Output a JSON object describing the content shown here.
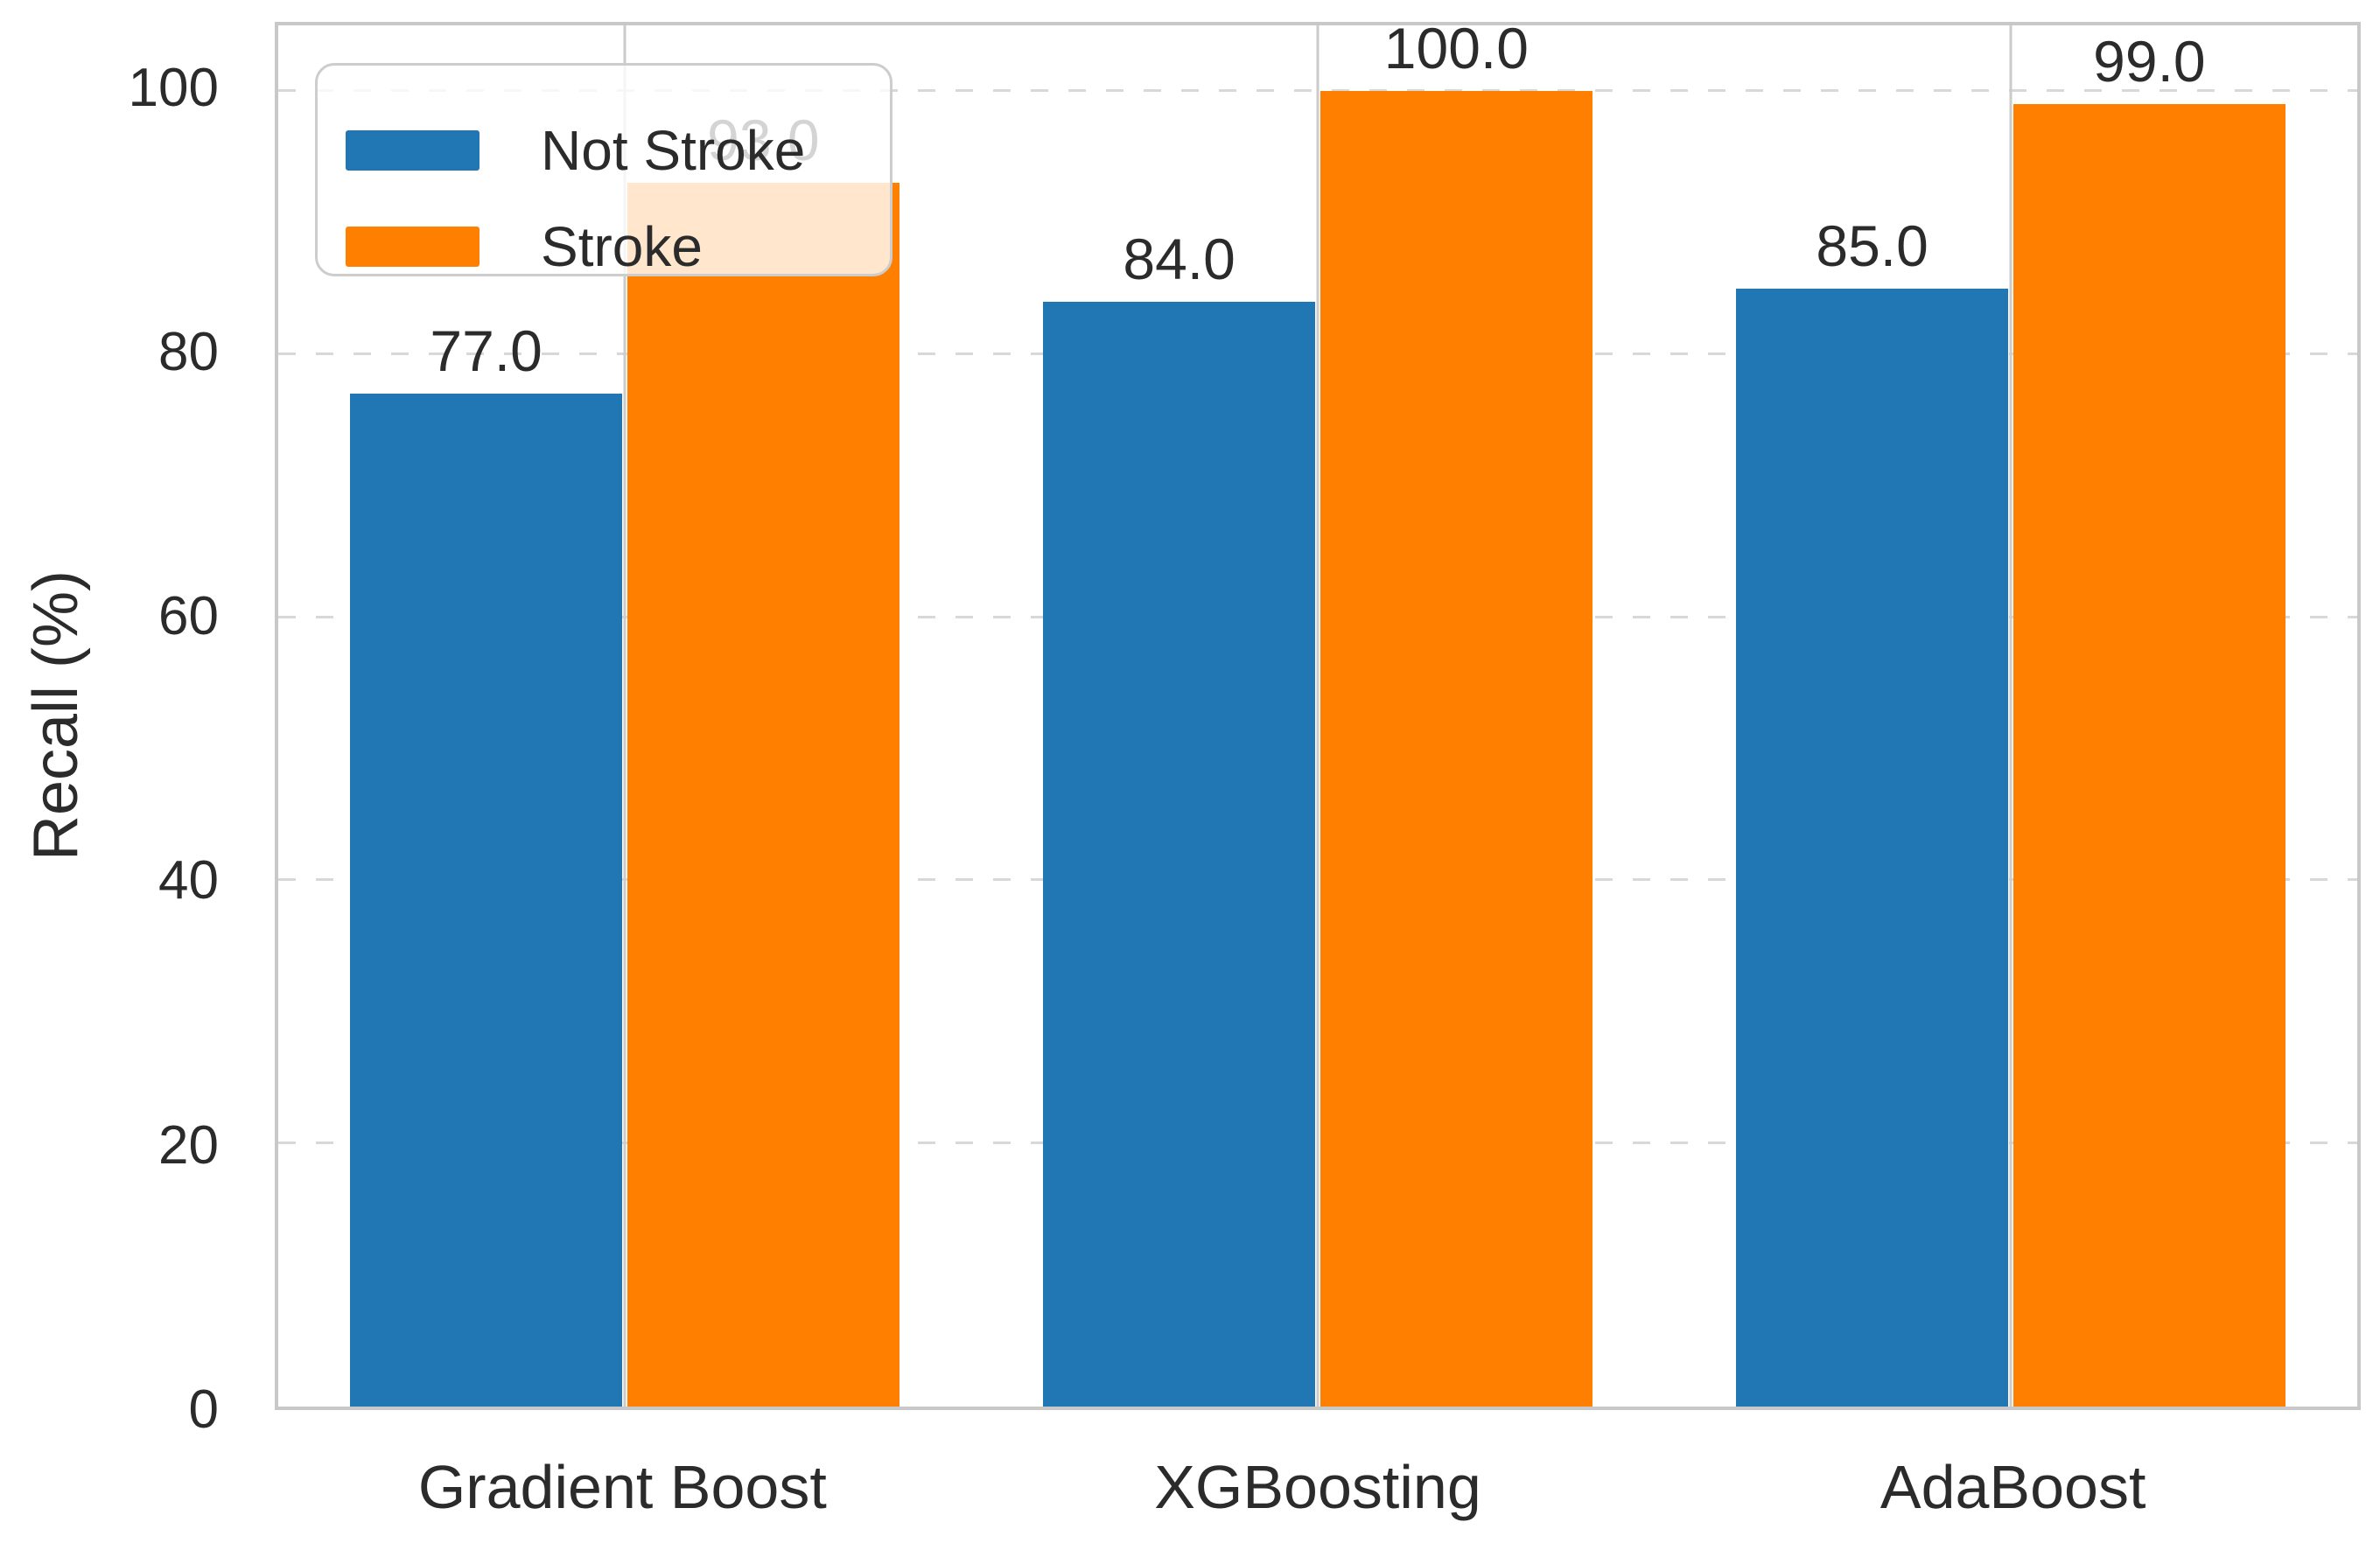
{
  "figure": {
    "background_color": "#ffffff",
    "spine_color": "#c8c8c8",
    "hgrid_color": "#d8d8d8",
    "vgrid_color": "#cbcbcb",
    "text_color": "#2b2b2b"
  },
  "chart_data": {
    "type": "bar",
    "title": "",
    "xlabel": "",
    "ylabel": "Recall (%)",
    "categories": [
      "Gradient Boost",
      "XGBoosting",
      "AdaBoost"
    ],
    "series": [
      {
        "name": "Not Stroke",
        "color": "#2077b4",
        "values": [
          77.0,
          84.0,
          85.0
        ]
      },
      {
        "name": "Stroke",
        "color": "#ff8000",
        "values": [
          93.0,
          100.0,
          99.0
        ]
      }
    ],
    "bar_value_labels": [
      [
        "77.0",
        "84.0",
        "85.0"
      ],
      [
        "93.0",
        "100.0",
        "99.0"
      ]
    ],
    "ylim": [
      0,
      105
    ],
    "yticks": [
      0,
      20,
      40,
      60,
      80,
      100
    ],
    "grid": "horizontal dashed lines at yticks, vertical solid lines at category centers",
    "legend": {
      "position": "upper left",
      "items": [
        "Not Stroke",
        "Stroke"
      ]
    }
  }
}
